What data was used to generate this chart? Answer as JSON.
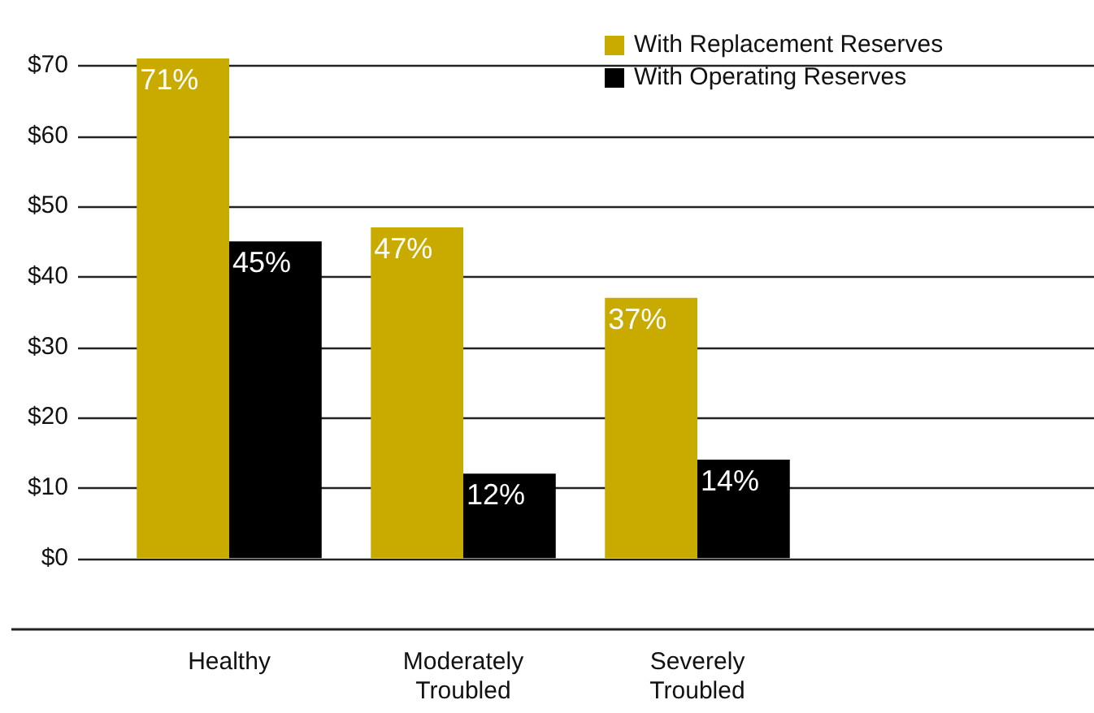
{
  "chart_data": {
    "type": "bar",
    "categories": [
      "Healthy",
      "Moderately Troubled",
      "Severely Troubled"
    ],
    "series": [
      {
        "name": "With Replacement Reserves",
        "color": "#c9ab00",
        "values": [
          71,
          47,
          37
        ],
        "value_labels": [
          "71%",
          "47%",
          "37%"
        ]
      },
      {
        "name": "With Operating Reserves",
        "color": "#000000",
        "values": [
          45,
          12,
          14
        ],
        "value_labels": [
          "45%",
          "12%",
          "14%"
        ]
      }
    ],
    "ylim": [
      -10,
      71
    ],
    "yticks": [
      {
        "value": 0,
        "label": "$0"
      },
      {
        "value": 10,
        "label": "$10"
      },
      {
        "value": 20,
        "label": "$20"
      },
      {
        "value": 30,
        "label": "$30"
      },
      {
        "value": 40,
        "label": "$40"
      },
      {
        "value": 50,
        "label": "$50"
      },
      {
        "value": 60,
        "label": "$60"
      },
      {
        "value": 70,
        "label": "$70"
      }
    ],
    "grid": "y",
    "legend": "top right"
  }
}
